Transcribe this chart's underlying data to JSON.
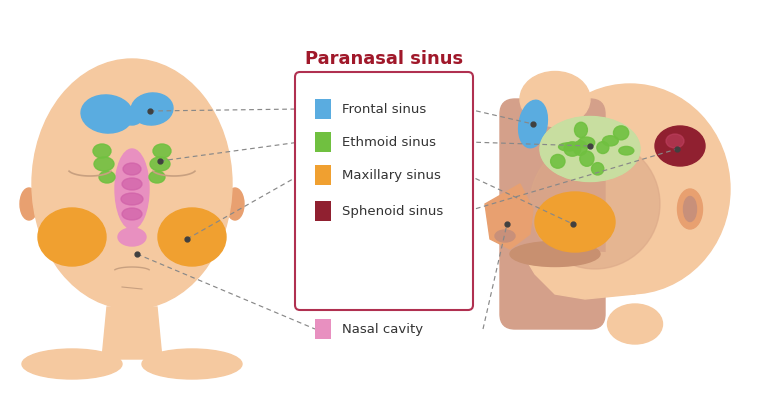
{
  "title": "Paranasal sinus",
  "title_color": "#a0182a",
  "background_color": "#ffffff",
  "skin_color": "#f5c9a0",
  "skin_dark": "#e8a070",
  "skin_shadow": "#c8907a",
  "skin_inner": "#d4a08a",
  "legend_items": [
    {
      "label": "Frontal sinus",
      "color": "#5aace0"
    },
    {
      "label": "Ethmoid sinus",
      "color": "#70c040"
    },
    {
      "label": "Maxillary sinus",
      "color": "#f0a030"
    },
    {
      "label": "Sphenoid sinus",
      "color": "#902030"
    },
    {
      "label": "Nasal cavity",
      "color": "#e890c0"
    }
  ],
  "legend_box_color": "#b03050",
  "dashed_line_color": "#888888",
  "frontal_color": "#5aace0",
  "ethmoid_color": "#70c040",
  "ethmoid_bg": "#c8dea0",
  "maxillary_color": "#f0a030",
  "sphenoid_color": "#902030",
  "nasal_color": "#e890c0",
  "dot_color": "#404040",
  "eye_color": "#c8a080",
  "face_line_color": "#c8a080"
}
